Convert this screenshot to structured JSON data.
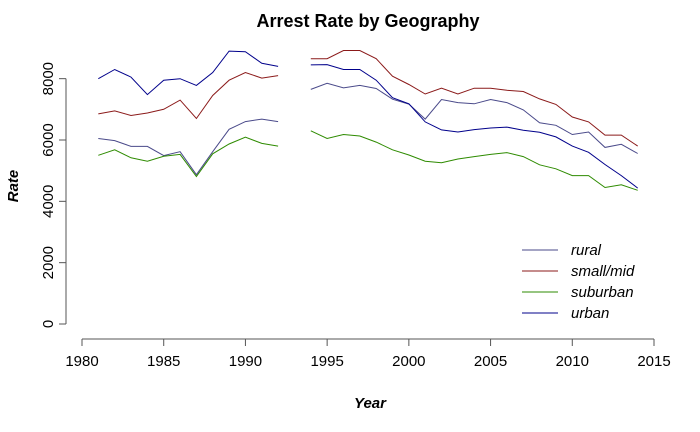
{
  "chart_data": {
    "type": "line",
    "title": "Arrest Rate by Geography",
    "xlabel": "Year",
    "ylabel": "Rate",
    "xlim": [
      1980,
      2015
    ],
    "ylim": [
      0,
      9000
    ],
    "x_ticks": [
      1980,
      1985,
      1990,
      1995,
      2000,
      2005,
      2010,
      2015
    ],
    "y_ticks": [
      0,
      2000,
      4000,
      6000,
      8000
    ],
    "grid": false,
    "legend_position": "bottom-right",
    "x": [
      1981,
      1982,
      1983,
      1984,
      1985,
      1986,
      1987,
      1988,
      1989,
      1990,
      1991,
      1992,
      1993,
      1994,
      1995,
      1996,
      1997,
      1998,
      1999,
      2000,
      2001,
      2002,
      2003,
      2004,
      2005,
      2006,
      2007,
      2008,
      2009,
      2010,
      2011,
      2012,
      2013,
      2014
    ],
    "series": [
      {
        "name": "rural",
        "color": "#4a4a8a",
        "values": [
          6050,
          5980,
          5790,
          5790,
          5490,
          5620,
          4870,
          5620,
          6350,
          6600,
          6680,
          6600,
          null,
          7650,
          7850,
          7700,
          7780,
          7680,
          7330,
          7170,
          6680,
          7320,
          7220,
          7180,
          7320,
          7220,
          6980,
          6560,
          6480,
          6180,
          6260,
          5760,
          5860,
          5560
        ]
      },
      {
        "name": "small/mid",
        "color": "#8b1a1a",
        "values": [
          6850,
          6950,
          6800,
          6880,
          7000,
          7300,
          6700,
          7450,
          7950,
          8200,
          8020,
          8100,
          null,
          8650,
          8650,
          8920,
          8920,
          8650,
          8080,
          7810,
          7500,
          7690,
          7500,
          7690,
          7690,
          7620,
          7580,
          7340,
          7160,
          6750,
          6590,
          6160,
          6160,
          5800
        ]
      },
      {
        "name": "suburban",
        "color": "#2e8b00",
        "values": [
          5500,
          5680,
          5420,
          5310,
          5470,
          5530,
          4810,
          5550,
          5870,
          6090,
          5890,
          5800,
          null,
          6300,
          6050,
          6180,
          6130,
          5930,
          5680,
          5510,
          5310,
          5260,
          5380,
          5460,
          5530,
          5590,
          5460,
          5190,
          5060,
          4840,
          4840,
          4450,
          4540,
          4360
        ]
      },
      {
        "name": "urban",
        "color": "#00008b",
        "values": [
          8000,
          8300,
          8050,
          7480,
          7950,
          8000,
          7780,
          8200,
          8900,
          8880,
          8500,
          8400,
          null,
          8450,
          8460,
          8300,
          8300,
          7950,
          7380,
          7180,
          6590,
          6330,
          6260,
          6340,
          6390,
          6420,
          6320,
          6250,
          6100,
          5800,
          5600,
          5200,
          4840,
          4430
        ]
      }
    ]
  }
}
